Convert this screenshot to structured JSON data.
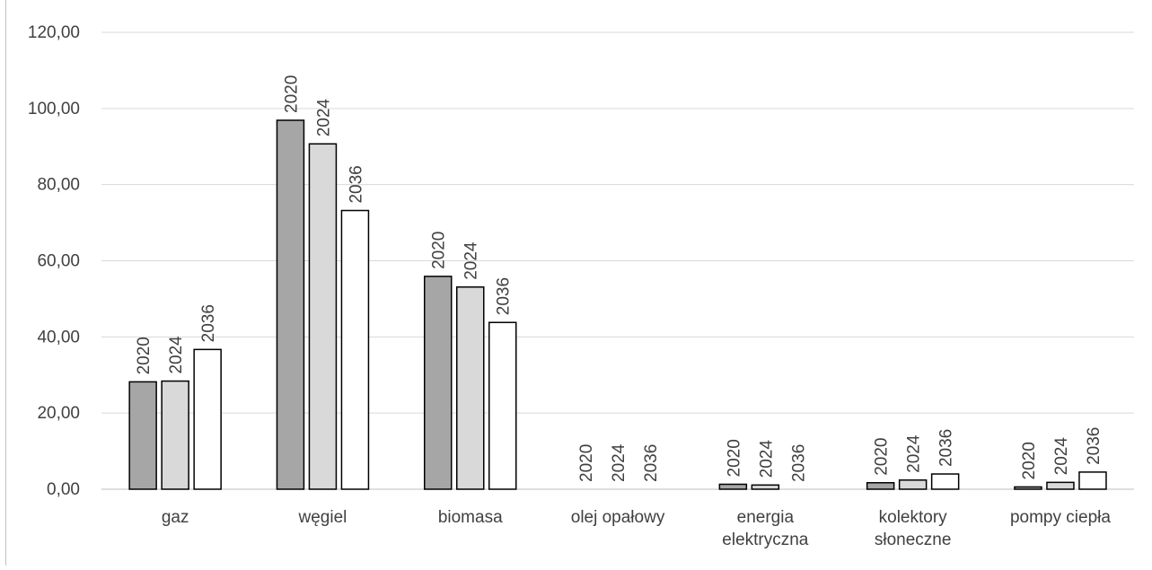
{
  "chart_data": {
    "type": "bar",
    "categories": [
      [
        "gaz"
      ],
      [
        "węgiel"
      ],
      [
        "biomasa"
      ],
      [
        "olej opałowy"
      ],
      [
        "energia",
        "elektryczna"
      ],
      [
        "kolektory",
        "słoneczne"
      ],
      [
        "pompy ciepła"
      ]
    ],
    "series": [
      {
        "name": "2020",
        "color": "#a6a6a6",
        "values": [
          28.2,
          96.9,
          55.9,
          0.0,
          1.3,
          1.7,
          0.6
        ]
      },
      {
        "name": "2024",
        "color": "#d9d9d9",
        "values": [
          28.4,
          90.7,
          53.1,
          0.0,
          1.1,
          2.4,
          1.8
        ]
      },
      {
        "name": "2036",
        "color": "#ffffff",
        "values": [
          36.7,
          73.2,
          43.8,
          0.0,
          0.0,
          4.0,
          4.5
        ]
      }
    ],
    "yticks": [
      "0,00",
      "20,00",
      "40,00",
      "60,00",
      "80,00",
      "100,00",
      "120,00"
    ],
    "ylim": [
      0,
      120
    ],
    "grid": true,
    "bar_labels": "series-name-rotated",
    "colors": {
      "grid": "#d9d9d9",
      "bar_stroke": "#000000",
      "text": "#404040"
    }
  }
}
